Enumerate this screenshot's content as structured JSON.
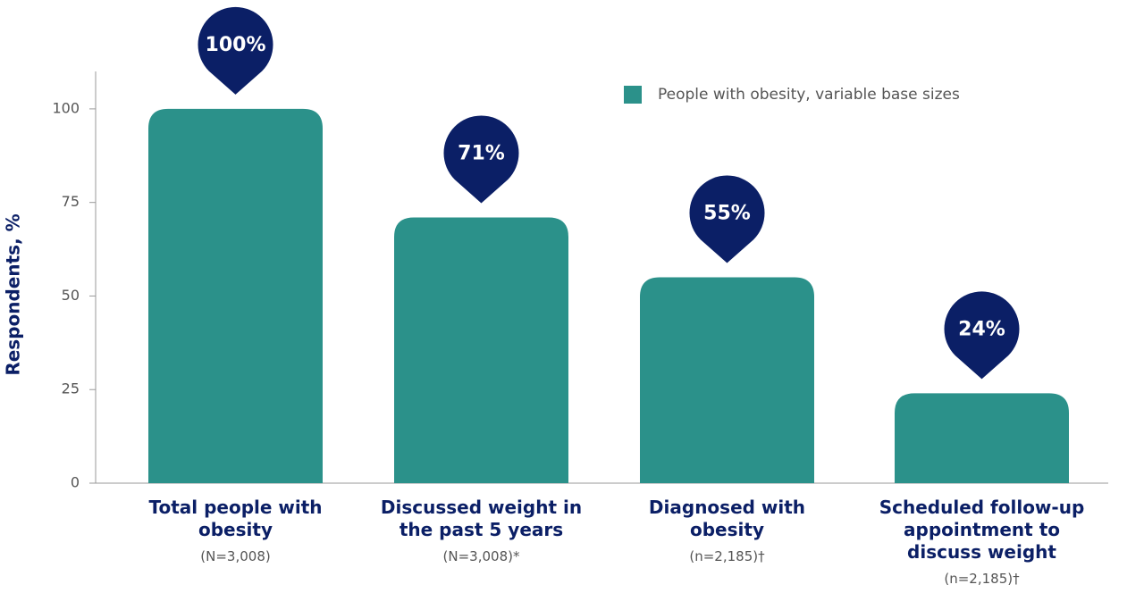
{
  "chart_data": {
    "type": "bar",
    "y_label": "Respondents, %",
    "categories": [
      "Total people with obesity",
      "Discussed weight in the past 5 years",
      "Diagnosed with obesity",
      "Scheduled follow-up appointment to discuss weight"
    ],
    "sample_sizes": [
      "(N=3,008)",
      "(N=3,008)*",
      "(n=2,185)†",
      "(n=2,185)†"
    ],
    "series": [
      {
        "name": "People with obesity, variable base sizes",
        "color": "#2b918a",
        "values": [
          100,
          71,
          55,
          24
        ],
        "value_labels": [
          "100%",
          "71%",
          "55%",
          "24%"
        ]
      }
    ],
    "ylim": [
      0,
      110
    ],
    "yticks": [
      0,
      25,
      50,
      75,
      100
    ],
    "grid": false,
    "legend": "top-right",
    "label_color": "#0b1f66"
  }
}
